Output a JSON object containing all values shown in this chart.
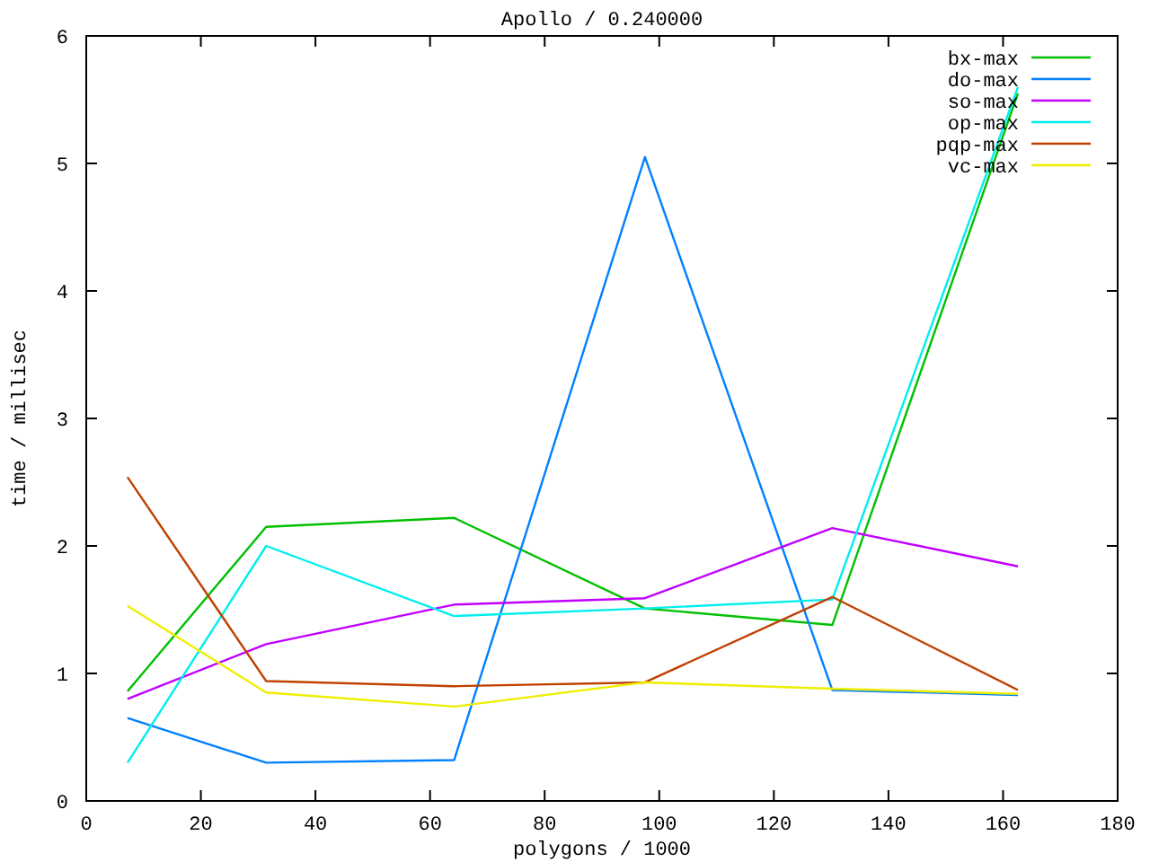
{
  "chart_data": {
    "type": "line",
    "title": "Apollo / 0.240000",
    "xlabel": "polygons / 1000",
    "ylabel": "time / millisec",
    "x": [
      7.2,
      31.4,
      64.2,
      97.5,
      130.2,
      162.6
    ],
    "series": [
      {
        "name": "bx-max",
        "color": "#00c000",
        "values": [
          0.86,
          2.15,
          2.22,
          1.51,
          1.38,
          5.55
        ]
      },
      {
        "name": "do-max",
        "color": "#0080ff",
        "values": [
          0.65,
          0.3,
          0.32,
          5.05,
          0.87,
          0.83
        ]
      },
      {
        "name": "so-max",
        "color": "#c000ff",
        "values": [
          0.8,
          1.23,
          1.54,
          1.59,
          2.14,
          1.84
        ]
      },
      {
        "name": "op-max",
        "color": "#00eeee",
        "values": [
          0.3,
          2.0,
          1.45,
          1.51,
          1.58,
          5.6
        ]
      },
      {
        "name": "pqp-max",
        "color": "#c04000",
        "values": [
          2.54,
          0.94,
          0.9,
          0.93,
          1.6,
          0.87
        ]
      },
      {
        "name": "vc-max",
        "color": "#eeee00",
        "values": [
          1.53,
          0.85,
          0.74,
          0.93,
          0.88,
          0.84
        ]
      }
    ],
    "xlim": [
      0,
      180
    ],
    "xticks": [
      0,
      20,
      40,
      60,
      80,
      100,
      120,
      140,
      160,
      180
    ],
    "ylim": [
      0,
      6
    ],
    "yticks": [
      0,
      1,
      2,
      3,
      4,
      5,
      6
    ],
    "grid": false,
    "legend": "top right",
    "marker": "none",
    "line_style": "solid"
  }
}
